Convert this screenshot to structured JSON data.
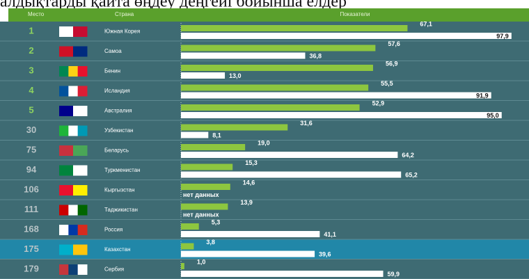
{
  "chart_data": {
    "type": "bar",
    "caption": "алдықтарды қайта өңдеу деңгейі бойынша елдер",
    "columns": [
      "Место",
      "Страна",
      "Показатели"
    ],
    "ranks": [
      "1",
      "2",
      "3",
      "4",
      "5",
      "30",
      "75",
      "94",
      "106",
      "111",
      "168",
      "175",
      "179"
    ],
    "categories": [
      "Южная Корея",
      "Самоа",
      "Бенин",
      "Исландия",
      "Австралия",
      "Узбекистан",
      "Беларусь",
      "Туркменистан",
      "Кыргызстан",
      "Таджикистан",
      "Россия",
      "Казахстан",
      "Сербия"
    ],
    "highlight": "Казахстан",
    "xlim": [
      0,
      100
    ],
    "series": [
      {
        "color": "#8dc63f",
        "values": [
          67.1,
          57.6,
          56.9,
          55.5,
          52.9,
          31.6,
          19.0,
          15.3,
          14.6,
          13.9,
          5.3,
          3.8,
          1.0
        ],
        "value_labels": [
          "67,1",
          "57,6",
          "56,9",
          "55,5",
          "52,9",
          "31,6",
          "19,0",
          "15,3",
          "14,6",
          "13,9",
          "5,3",
          "3,8",
          "1,0"
        ]
      },
      {
        "color": "#ffffff",
        "values": [
          97.9,
          36.8,
          13.0,
          91.9,
          95.0,
          8.1,
          64.2,
          65.2,
          null,
          null,
          41.1,
          39.6,
          59.9
        ],
        "value_labels": [
          "97,9",
          "36,8",
          "13,0",
          "91,9",
          "95,0",
          "8,1",
          "64,2",
          "65,2",
          "нет данных",
          "нет данных",
          "41,1",
          "39,6",
          "59,9"
        ]
      }
    ]
  }
}
